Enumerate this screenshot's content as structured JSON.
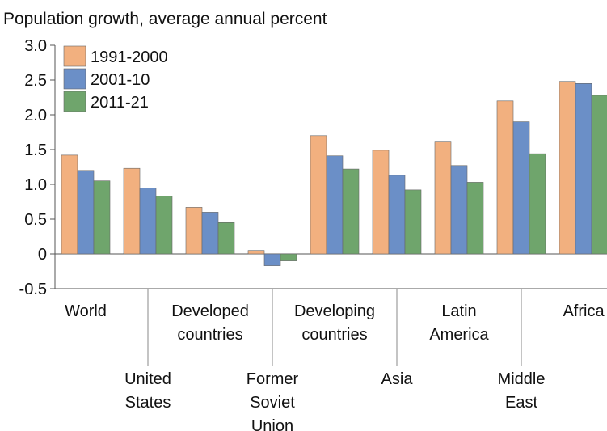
{
  "chart_data": {
    "type": "bar",
    "title": "Population growth, average annual percent",
    "ylim": [
      -0.5,
      3.0
    ],
    "y_ticks": [
      "3.0",
      "2.5",
      "2.0",
      "1.5",
      "1.0",
      "0.5",
      "0",
      "-0.5"
    ],
    "y_tick_values": [
      3.0,
      2.5,
      2.0,
      1.5,
      1.0,
      0.5,
      0,
      -0.5
    ],
    "legend_position": "top-left",
    "categories": [
      [
        "World"
      ],
      [
        "United",
        "States"
      ],
      [
        "Developed",
        "countries"
      ],
      [
        "Former",
        "Soviet",
        "Union"
      ],
      [
        "Developing",
        "countries"
      ],
      [
        "Asia"
      ],
      [
        "Latin",
        "America"
      ],
      [
        "Middle",
        "East"
      ],
      [
        "Africa"
      ]
    ],
    "series": [
      {
        "name": "1991-2000",
        "color": "#f2b07f",
        "values": [
          1.42,
          1.23,
          0.67,
          0.05,
          1.7,
          1.49,
          1.62,
          2.2,
          2.48
        ]
      },
      {
        "name": "2001-10",
        "color": "#6b8fc7",
        "values": [
          1.2,
          0.95,
          0.6,
          -0.17,
          1.41,
          1.13,
          1.27,
          1.9,
          2.45
        ]
      },
      {
        "name": "2011-21",
        "color": "#6fa56c",
        "values": [
          1.05,
          0.83,
          0.45,
          -0.1,
          1.22,
          0.92,
          1.03,
          1.44,
          2.28
        ]
      }
    ]
  }
}
